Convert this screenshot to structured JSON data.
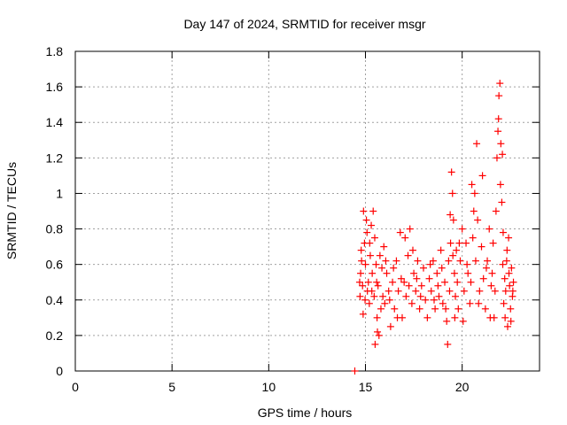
{
  "chart_data": {
    "type": "scatter",
    "title": "Day 147 of 2024, SRMTID for receiver msgr",
    "xlabel": "GPS time / hours",
    "ylabel": "SRMTID / TECUs",
    "xlim": [
      0,
      24
    ],
    "ylim": [
      0,
      1.8
    ],
    "x_ticks": [
      0,
      5,
      10,
      15,
      20
    ],
    "x_tick_labels": [
      "0",
      "5",
      "10",
      "15",
      "20"
    ],
    "y_ticks": [
      0,
      0.2,
      0.4,
      0.6,
      0.8,
      1,
      1.2,
      1.4,
      1.6,
      1.8
    ],
    "y_tick_labels": [
      "0",
      "0.2",
      "0.4",
      "0.6",
      "0.8",
      "1",
      "1.2",
      "1.4",
      "1.6",
      "1.8"
    ],
    "grid": true,
    "marker": "plus",
    "color": "#ff0000",
    "series": [
      {
        "name": "SRMTID",
        "points": [
          [
            14.45,
            0.0
          ],
          [
            14.7,
            0.5
          ],
          [
            14.75,
            0.55
          ],
          [
            14.8,
            0.62
          ],
          [
            14.85,
            0.48
          ],
          [
            14.9,
            0.9
          ],
          [
            14.95,
            0.72
          ],
          [
            15.0,
            0.6
          ],
          [
            15.05,
            0.85
          ],
          [
            15.1,
            0.45
          ],
          [
            14.72,
            0.42
          ],
          [
            14.78,
            0.68
          ],
          [
            14.88,
            0.32
          ],
          [
            14.98,
            0.4
          ],
          [
            15.08,
            0.78
          ],
          [
            15.15,
            0.5
          ],
          [
            15.2,
            0.38
          ],
          [
            15.25,
            0.65
          ],
          [
            15.3,
            0.82
          ],
          [
            15.35,
            0.55
          ],
          [
            15.4,
            0.9
          ],
          [
            15.45,
            0.42
          ],
          [
            15.5,
            0.15
          ],
          [
            15.55,
            0.6
          ],
          [
            15.6,
            0.3
          ],
          [
            15.22,
            0.72
          ],
          [
            15.33,
            0.45
          ],
          [
            15.48,
            0.75
          ],
          [
            15.58,
            0.5
          ],
          [
            15.62,
            0.22
          ],
          [
            15.65,
            0.48
          ],
          [
            15.7,
            0.2
          ],
          [
            15.75,
            0.65
          ],
          [
            15.8,
            0.35
          ],
          [
            15.85,
            0.58
          ],
          [
            15.9,
            0.42
          ],
          [
            15.95,
            0.7
          ],
          [
            16.0,
            0.38
          ],
          [
            16.1,
            0.55
          ],
          [
            16.2,
            0.45
          ],
          [
            16.3,
            0.25
          ],
          [
            16.4,
            0.5
          ],
          [
            16.5,
            0.35
          ],
          [
            16.6,
            0.62
          ],
          [
            16.7,
            0.45
          ],
          [
            16.8,
            0.78
          ],
          [
            16.9,
            0.3
          ],
          [
            17.0,
            0.5
          ],
          [
            17.1,
            0.42
          ],
          [
            17.2,
            0.65
          ],
          [
            17.3,
            0.8
          ],
          [
            17.4,
            0.38
          ],
          [
            17.5,
            0.55
          ],
          [
            17.6,
            0.45
          ],
          [
            17.7,
            0.62
          ],
          [
            17.8,
            0.35
          ],
          [
            17.9,
            0.48
          ],
          [
            18.0,
            0.58
          ],
          [
            18.1,
            0.4
          ],
          [
            18.2,
            0.3
          ],
          [
            16.05,
            0.62
          ],
          [
            16.25,
            0.4
          ],
          [
            16.45,
            0.58
          ],
          [
            16.65,
            0.3
          ],
          [
            16.85,
            0.52
          ],
          [
            17.05,
            0.75
          ],
          [
            17.25,
            0.48
          ],
          [
            17.45,
            0.68
          ],
          [
            17.65,
            0.52
          ],
          [
            17.85,
            0.42
          ],
          [
            18.3,
            0.52
          ],
          [
            18.4,
            0.45
          ],
          [
            18.5,
            0.62
          ],
          [
            18.6,
            0.35
          ],
          [
            18.7,
            0.55
          ],
          [
            18.8,
            0.42
          ],
          [
            18.9,
            0.68
          ],
          [
            19.0,
            0.38
          ],
          [
            19.1,
            0.5
          ],
          [
            19.2,
            0.28
          ],
          [
            19.25,
            0.15
          ],
          [
            19.3,
            0.62
          ],
          [
            19.35,
            0.45
          ],
          [
            19.4,
            0.72
          ],
          [
            19.45,
            1.12
          ],
          [
            19.5,
            1.0
          ],
          [
            19.55,
            0.85
          ],
          [
            19.6,
            0.55
          ],
          [
            19.65,
            0.42
          ],
          [
            19.7,
            0.68
          ],
          [
            18.35,
            0.6
          ],
          [
            18.55,
            0.4
          ],
          [
            18.75,
            0.48
          ],
          [
            18.95,
            0.58
          ],
          [
            19.15,
            0.35
          ],
          [
            19.38,
            0.88
          ],
          [
            19.52,
            0.65
          ],
          [
            19.62,
            0.3
          ],
          [
            19.75,
            0.5
          ],
          [
            19.8,
            0.35
          ],
          [
            19.9,
            0.62
          ],
          [
            20.0,
            0.8
          ],
          [
            20.1,
            0.45
          ],
          [
            20.2,
            0.72
          ],
          [
            20.3,
            0.55
          ],
          [
            20.4,
            0.38
          ],
          [
            20.5,
            1.05
          ],
          [
            20.6,
            0.9
          ],
          [
            20.7,
            0.62
          ],
          [
            20.75,
            1.28
          ],
          [
            20.8,
            0.85
          ],
          [
            20.9,
            0.45
          ],
          [
            21.0,
            0.7
          ],
          [
            21.1,
            0.52
          ],
          [
            21.2,
            0.35
          ],
          [
            21.3,
            0.62
          ],
          [
            21.4,
            0.8
          ],
          [
            21.5,
            0.48
          ],
          [
            19.85,
            0.72
          ],
          [
            20.05,
            0.28
          ],
          [
            20.25,
            0.6
          ],
          [
            20.45,
            0.5
          ],
          [
            20.55,
            0.75
          ],
          [
            20.65,
            1.0
          ],
          [
            20.85,
            0.38
          ],
          [
            21.05,
            1.1
          ],
          [
            21.25,
            0.58
          ],
          [
            21.45,
            0.3
          ],
          [
            21.6,
            0.72
          ],
          [
            21.7,
            0.45
          ],
          [
            21.8,
            1.2
          ],
          [
            21.85,
            1.35
          ],
          [
            21.9,
            1.55
          ],
          [
            21.95,
            1.62
          ],
          [
            22.0,
            1.28
          ],
          [
            22.05,
            0.95
          ],
          [
            22.1,
            0.6
          ],
          [
            22.15,
            0.38
          ],
          [
            21.75,
            0.9
          ],
          [
            21.88,
            1.42
          ],
          [
            21.98,
            1.05
          ],
          [
            22.08,
            1.22
          ],
          [
            22.12,
            0.78
          ],
          [
            21.65,
            0.3
          ],
          [
            21.55,
            0.55
          ],
          [
            22.2,
            0.52
          ],
          [
            22.25,
            0.45
          ],
          [
            22.3,
            0.62
          ],
          [
            22.35,
            0.25
          ],
          [
            22.4,
            0.75
          ],
          [
            22.45,
            0.48
          ],
          [
            22.5,
            0.35
          ],
          [
            22.55,
            0.58
          ],
          [
            22.6,
            0.42
          ],
          [
            22.65,
            0.5
          ],
          [
            22.22,
            0.3
          ],
          [
            22.32,
            0.68
          ],
          [
            22.42,
            0.55
          ],
          [
            22.52,
            0.28
          ],
          [
            22.62,
            0.45
          ]
        ]
      }
    ]
  }
}
